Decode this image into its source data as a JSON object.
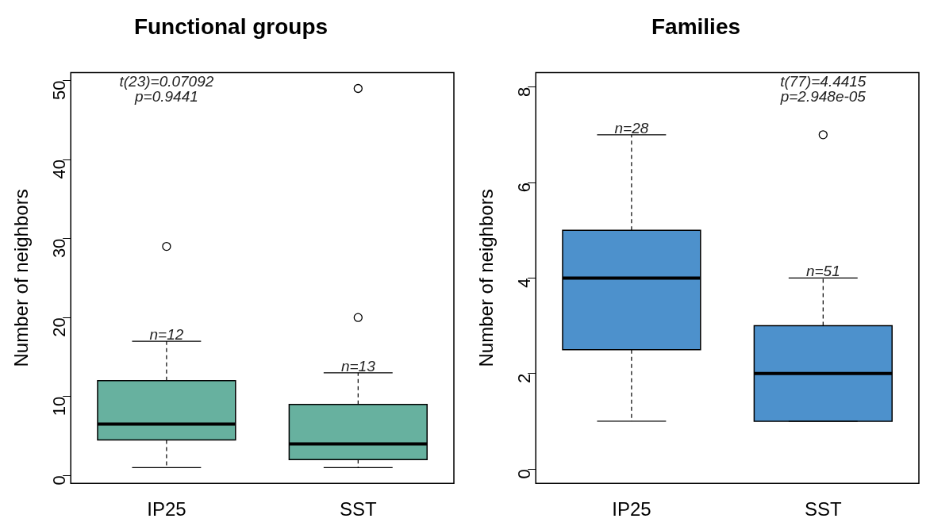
{
  "chart_data": [
    {
      "type": "box",
      "title": "Functional groups",
      "ylabel": "Number of neighbors",
      "categories": [
        "IP25",
        "SST"
      ],
      "color": "#67b19f",
      "ylim": [
        -1,
        51
      ],
      "yticks": [
        0,
        10,
        20,
        30,
        40,
        50
      ],
      "grid": false,
      "legend": false,
      "boxes": [
        {
          "low": 1,
          "q1": 4.5,
          "median": 6.5,
          "q3": 12,
          "high": 17,
          "outliers": [
            29
          ]
        },
        {
          "low": 1,
          "q1": 2,
          "median": 4,
          "q3": 9,
          "high": 13,
          "outliers": [
            20,
            49
          ]
        }
      ],
      "annotations": [
        {
          "text": "n=12",
          "x": "IP25",
          "y": 17
        },
        {
          "text": "n=13",
          "x": "SST",
          "y": 13
        },
        "t(23)=0.07092",
        "p=0.9441"
      ]
    },
    {
      "type": "box",
      "title": "Families",
      "ylabel": "Number of neighbors",
      "categories": [
        "IP25",
        "SST"
      ],
      "color": "#4d91cc",
      "ylim": [
        -0.3,
        8.3
      ],
      "yticks": [
        0,
        2,
        4,
        6,
        8
      ],
      "grid": false,
      "legend": false,
      "boxes": [
        {
          "low": 1,
          "q1": 2.5,
          "median": 4,
          "q3": 5,
          "high": 7
        },
        {
          "low": 1,
          "q1": 1,
          "median": 2,
          "q3": 3,
          "high": 4,
          "outliers": [
            7
          ]
        }
      ],
      "annotations": [
        {
          "text": "n=28",
          "x": "IP25",
          "y": 7
        },
        {
          "text": "n=51",
          "x": "SST",
          "y": 4
        },
        "t(77)=4.4415",
        "p=2.948e-05"
      ]
    }
  ]
}
